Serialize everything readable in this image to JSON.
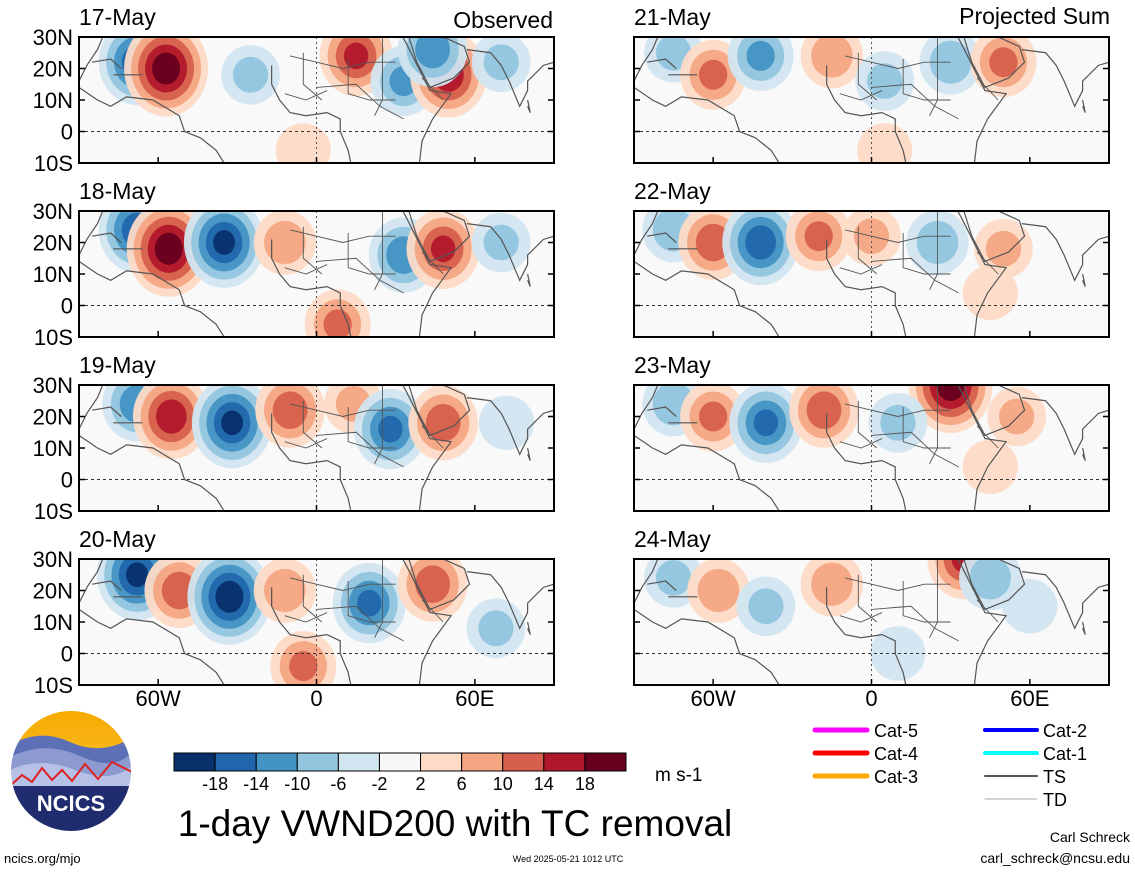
{
  "chart_data": {
    "type": "heatmap",
    "title": "1-day VWND200 with TC removal",
    "units": "m s-1",
    "variable": "VWND200",
    "columns": [
      {
        "label": "Observed",
        "panels": [
          {
            "date": "17-May",
            "field": [
              {
                "lon": -68,
                "lat": 22,
                "v": -16
              },
              {
                "lon": -57,
                "lat": 20,
                "v": 20
              },
              {
                "lon": -25,
                "lat": 18,
                "v": -6
              },
              {
                "lon": 15,
                "lat": 24,
                "v": 14
              },
              {
                "lon": 33,
                "lat": 16,
                "v": -10
              },
              {
                "lon": 50,
                "lat": 18,
                "v": 16
              },
              {
                "lon": 44,
                "lat": 26,
                "v": -12
              },
              {
                "lon": 70,
                "lat": 22,
                "v": -6
              },
              {
                "lon": -5,
                "lat": -6,
                "v": 4
              }
            ]
          },
          {
            "date": "18-May",
            "field": [
              {
                "lon": -68,
                "lat": 24,
                "v": -16
              },
              {
                "lon": -56,
                "lat": 18,
                "v": 20
              },
              {
                "lon": -35,
                "lat": 20,
                "v": -18
              },
              {
                "lon": -12,
                "lat": 20,
                "v": 8
              },
              {
                "lon": 33,
                "lat": 16,
                "v": -12
              },
              {
                "lon": 48,
                "lat": 18,
                "v": 14
              },
              {
                "lon": 8,
                "lat": -6,
                "v": 10
              },
              {
                "lon": 70,
                "lat": 20,
                "v": -6
              }
            ]
          },
          {
            "date": "19-May",
            "field": [
              {
                "lon": -68,
                "lat": 24,
                "v": -12
              },
              {
                "lon": -55,
                "lat": 20,
                "v": 16
              },
              {
                "lon": -32,
                "lat": 18,
                "v": -18
              },
              {
                "lon": -10,
                "lat": 22,
                "v": 12
              },
              {
                "lon": 14,
                "lat": 24,
                "v": 6
              },
              {
                "lon": 28,
                "lat": 16,
                "v": -14
              },
              {
                "lon": 48,
                "lat": 18,
                "v": 12
              },
              {
                "lon": 72,
                "lat": 18,
                "v": -4
              }
            ]
          },
          {
            "date": "20-May",
            "field": [
              {
                "lon": -68,
                "lat": 25,
                "v": -18
              },
              {
                "lon": -52,
                "lat": 20,
                "v": 12
              },
              {
                "lon": -33,
                "lat": 18,
                "v": -20
              },
              {
                "lon": -12,
                "lat": 20,
                "v": 8
              },
              {
                "lon": 20,
                "lat": 16,
                "v": -14
              },
              {
                "lon": 44,
                "lat": 22,
                "v": 12
              },
              {
                "lon": -5,
                "lat": -4,
                "v": 10
              },
              {
                "lon": 68,
                "lat": 8,
                "v": -6
              }
            ]
          }
        ]
      },
      {
        "label": "Projected Sum",
        "panels": [
          {
            "date": "21-May",
            "field": [
              {
                "lon": -75,
                "lat": 25,
                "v": -6
              },
              {
                "lon": -60,
                "lat": 18,
                "v": 10
              },
              {
                "lon": -42,
                "lat": 24,
                "v": -10
              },
              {
                "lon": -15,
                "lat": 24,
                "v": 8
              },
              {
                "lon": 5,
                "lat": 16,
                "v": -6
              },
              {
                "lon": 30,
                "lat": 22,
                "v": -8
              },
              {
                "lon": 50,
                "lat": 22,
                "v": 10
              },
              {
                "lon": 5,
                "lat": -6,
                "v": 4
              }
            ]
          },
          {
            "date": "22-May",
            "field": [
              {
                "lon": -75,
                "lat": 24,
                "v": -8
              },
              {
                "lon": -60,
                "lat": 20,
                "v": 12
              },
              {
                "lon": -42,
                "lat": 20,
                "v": -16
              },
              {
                "lon": -20,
                "lat": 22,
                "v": 10
              },
              {
                "lon": 0,
                "lat": 22,
                "v": 6
              },
              {
                "lon": 25,
                "lat": 20,
                "v": -8
              },
              {
                "lon": 50,
                "lat": 18,
                "v": 6
              },
              {
                "lon": 45,
                "lat": 4,
                "v": 4
              }
            ]
          },
          {
            "date": "23-May",
            "field": [
              {
                "lon": -75,
                "lat": 24,
                "v": -8
              },
              {
                "lon": -60,
                "lat": 20,
                "v": 10
              },
              {
                "lon": -40,
                "lat": 18,
                "v": -14
              },
              {
                "lon": -18,
                "lat": 22,
                "v": 12
              },
              {
                "lon": 30,
                "lat": 30,
                "v": 20
              },
              {
                "lon": 10,
                "lat": 18,
                "v": -6
              },
              {
                "lon": 55,
                "lat": 20,
                "v": 6
              },
              {
                "lon": 45,
                "lat": 4,
                "v": 4
              }
            ]
          },
          {
            "date": "24-May",
            "field": [
              {
                "lon": -75,
                "lat": 24,
                "v": -6
              },
              {
                "lon": -58,
                "lat": 20,
                "v": 8
              },
              {
                "lon": -40,
                "lat": 15,
                "v": -6
              },
              {
                "lon": -15,
                "lat": 22,
                "v": 8
              },
              {
                "lon": 35,
                "lat": 30,
                "v": 14
              },
              {
                "lon": 45,
                "lat": 24,
                "v": -8
              },
              {
                "lon": 60,
                "lat": 15,
                "v": -4
              },
              {
                "lon": 10,
                "lat": 0,
                "v": -4
              }
            ]
          }
        ]
      }
    ],
    "x_axis": {
      "type": "longitude",
      "range": [
        -90,
        90
      ],
      "ticks": [
        {
          "value": -60,
          "label": "60W"
        },
        {
          "value": 0,
          "label": "0"
        },
        {
          "value": 60,
          "label": "60E"
        }
      ]
    },
    "y_axis": {
      "type": "latitude",
      "range": [
        -10,
        30
      ],
      "ticks": [
        {
          "value": 30,
          "label": "30N"
        },
        {
          "value": 20,
          "label": "20N"
        },
        {
          "value": 10,
          "label": "10N"
        },
        {
          "value": 0,
          "label": "0"
        },
        {
          "value": -10,
          "label": "10S"
        }
      ]
    },
    "colorbar": {
      "labels": [
        "-18",
        "-14",
        "-10",
        "-6",
        "-2",
        "2",
        "6",
        "10",
        "14",
        "18"
      ],
      "colors": [
        "#08306b",
        "#2166ac",
        "#4393c3",
        "#92c5de",
        "#d1e5f0",
        "#f7f7f7",
        "#fddbc7",
        "#f4a582",
        "#d6604d",
        "#b2182b",
        "#67001f"
      ]
    },
    "legend": {
      "placement": "bottom-right",
      "entries": [
        {
          "label": "Cat-5",
          "color": "#ff00ff"
        },
        {
          "label": "Cat-4",
          "color": "#ff0000"
        },
        {
          "label": "Cat-3",
          "color": "#ffa500"
        },
        {
          "label": "Cat-2",
          "color": "#0000ff"
        },
        {
          "label": "Cat-1",
          "color": "#00ffff"
        },
        {
          "label": "TS",
          "color": "#555555"
        },
        {
          "label": "TD",
          "color": "#aaaaaa"
        }
      ]
    }
  },
  "branding": {
    "logo_text": "NCICS",
    "url": "ncics.org/mjo",
    "timestamp": "Wed 2025-05-21 1012 UTC",
    "author": "Carl Schreck",
    "email": "carl_schreck@ncsu.edu"
  }
}
